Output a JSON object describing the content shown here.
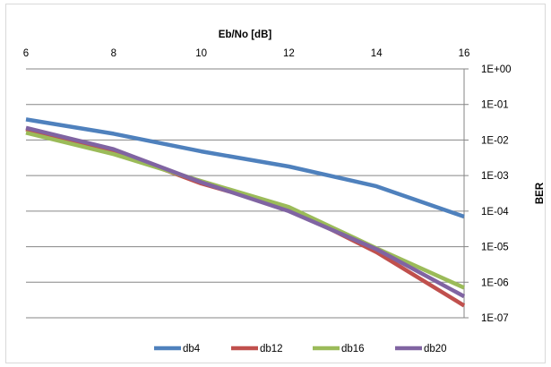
{
  "chart_data": {
    "type": "line",
    "title": "",
    "xlabel": "Eb/No [dB]",
    "ylabel": "BER",
    "xlim": [
      6,
      16
    ],
    "ylim": [
      1e-07,
      1
    ],
    "y_scale": "log",
    "x_axis_position": "top",
    "y_axis_position": "right",
    "grid": "horizontal",
    "legend_position": "bottom",
    "x_ticks": [
      6,
      8,
      10,
      12,
      14,
      16
    ],
    "x_tick_labels": [
      "6",
      "8",
      "10",
      "12",
      "14",
      "16"
    ],
    "y_ticks": [
      1,
      0.1,
      0.01,
      0.001,
      0.0001,
      1e-05,
      1e-06,
      1e-07
    ],
    "y_tick_labels": [
      "1E+00",
      "1E-01",
      "1E-02",
      "1E-03",
      "1E-04",
      "1E-05",
      "1E-06",
      "1E-07"
    ],
    "x": [
      6,
      8,
      10,
      12,
      14,
      16
    ],
    "series": [
      {
        "name": "db4",
        "color": "#4f81bd",
        "values": [
          0.038,
          0.015,
          0.0048,
          0.0018,
          0.0005,
          7e-05
        ]
      },
      {
        "name": "db12",
        "color": "#c0504d",
        "values": [
          0.02,
          0.005,
          0.0006,
          0.00012,
          7e-06,
          2.2e-07
        ]
      },
      {
        "name": "db16",
        "color": "#9bbb59",
        "values": [
          0.016,
          0.004,
          0.0007,
          0.00013,
          9e-06,
          7e-07
        ]
      },
      {
        "name": "db20",
        "color": "#8064a2",
        "values": [
          0.022,
          0.0055,
          0.00065,
          0.0001,
          8.5e-06,
          4e-07
        ]
      }
    ]
  }
}
